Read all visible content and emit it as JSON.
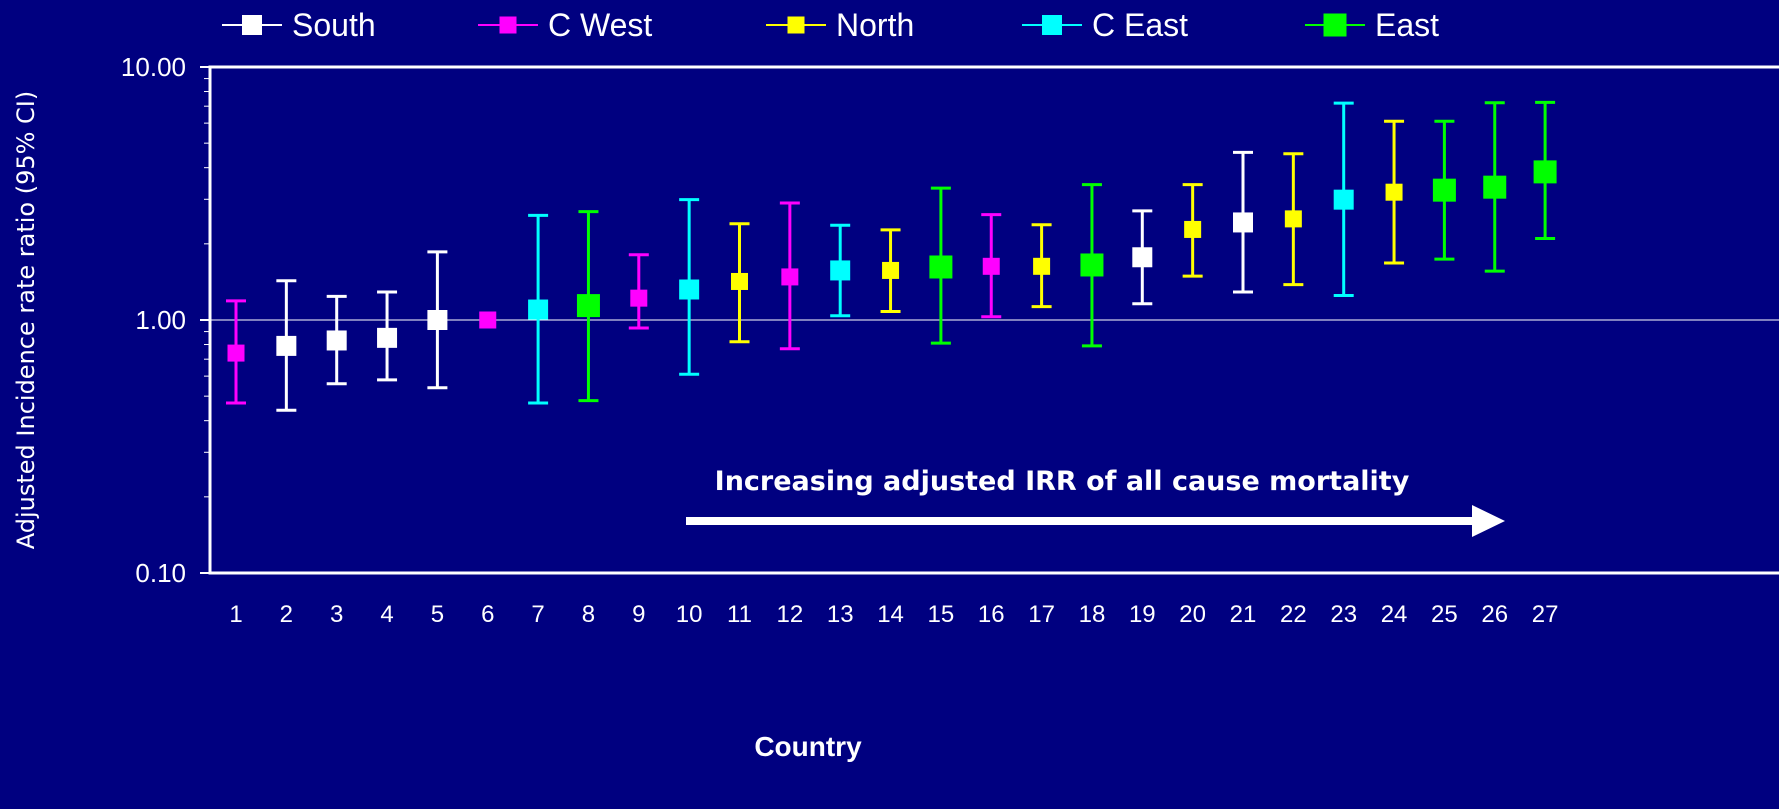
{
  "chart_data": {
    "type": "scatter",
    "subtype": "point estimates with 95% confidence interval error bars",
    "xlabel": "Country",
    "ylabel": "Adjusted Incidence rate ratio (95% CI)",
    "yscale": "log",
    "ylim": [
      0.1,
      10
    ],
    "y_tick_labels": [
      "10.00",
      "1.00",
      "0.10"
    ],
    "x_tick_labels": [
      "1",
      "2",
      "3",
      "4",
      "5",
      "6",
      "7",
      "8",
      "9",
      "10",
      "11",
      "12",
      "13",
      "14",
      "15",
      "16",
      "17",
      "18",
      "19",
      "20",
      "21",
      "22",
      "23",
      "24",
      "25",
      "26",
      "27"
    ],
    "grid": "horizontal reference line at 1.00",
    "legend_position": "top",
    "annotation": "Increasing adjusted IRR of all cause mortality",
    "colors": {
      "background": "#000080",
      "axis": "#FFFFFF",
      "South": "#FFFFFF",
      "C West": "#FF00FF",
      "North": "#FFFF00",
      "C East": "#00FFFF",
      "East": "#00FF00"
    },
    "series": [
      {
        "name": "South",
        "marker_size": "medium",
        "points": [
          {
            "x": 2,
            "y": 0.79,
            "lo": 0.44,
            "hi": 1.43
          },
          {
            "x": 3,
            "y": 0.83,
            "lo": 0.56,
            "hi": 1.24
          },
          {
            "x": 4,
            "y": 0.85,
            "lo": 0.58,
            "hi": 1.29
          },
          {
            "x": 5,
            "y": 1.0,
            "lo": 0.54,
            "hi": 1.86
          },
          {
            "x": 19,
            "y": 1.77,
            "lo": 1.16,
            "hi": 2.7
          },
          {
            "x": 21,
            "y": 2.43,
            "lo": 1.29,
            "hi": 4.6
          }
        ]
      },
      {
        "name": "C West",
        "marker_size": "small",
        "points": [
          {
            "x": 1,
            "y": 0.74,
            "lo": 0.47,
            "hi": 1.19
          },
          {
            "x": 6,
            "y": 1.0,
            "lo": 1.0,
            "hi": 1.0
          },
          {
            "x": 9,
            "y": 1.22,
            "lo": 0.93,
            "hi": 1.81
          },
          {
            "x": 12,
            "y": 1.48,
            "lo": 0.77,
            "hi": 2.9
          },
          {
            "x": 16,
            "y": 1.63,
            "lo": 1.03,
            "hi": 2.61
          }
        ]
      },
      {
        "name": "North",
        "marker_size": "small",
        "points": [
          {
            "x": 11,
            "y": 1.42,
            "lo": 0.82,
            "hi": 2.4
          },
          {
            "x": 14,
            "y": 1.57,
            "lo": 1.08,
            "hi": 2.27
          },
          {
            "x": 17,
            "y": 1.63,
            "lo": 1.13,
            "hi": 2.38
          },
          {
            "x": 20,
            "y": 2.28,
            "lo": 1.49,
            "hi": 3.43
          },
          {
            "x": 22,
            "y": 2.51,
            "lo": 1.38,
            "hi": 4.54
          },
          {
            "x": 24,
            "y": 3.2,
            "lo": 1.68,
            "hi": 6.1
          }
        ]
      },
      {
        "name": "C East",
        "marker_size": "medium",
        "points": [
          {
            "x": 7,
            "y": 1.1,
            "lo": 0.47,
            "hi": 2.59
          },
          {
            "x": 10,
            "y": 1.32,
            "lo": 0.61,
            "hi": 2.99
          },
          {
            "x": 13,
            "y": 1.57,
            "lo": 1.04,
            "hi": 2.37
          },
          {
            "x": 23,
            "y": 2.99,
            "lo": 1.25,
            "hi": 7.2
          }
        ]
      },
      {
        "name": "East",
        "marker_size": "large",
        "points": [
          {
            "x": 8,
            "y": 1.14,
            "lo": 0.48,
            "hi": 2.68
          },
          {
            "x": 15,
            "y": 1.62,
            "lo": 0.81,
            "hi": 3.32
          },
          {
            "x": 18,
            "y": 1.65,
            "lo": 0.79,
            "hi": 3.43
          },
          {
            "x": 25,
            "y": 3.26,
            "lo": 1.74,
            "hi": 6.1
          },
          {
            "x": 26,
            "y": 3.35,
            "lo": 1.56,
            "hi": 7.22
          },
          {
            "x": 27,
            "y": 3.85,
            "lo": 2.1,
            "hi": 7.25
          }
        ]
      }
    ]
  }
}
